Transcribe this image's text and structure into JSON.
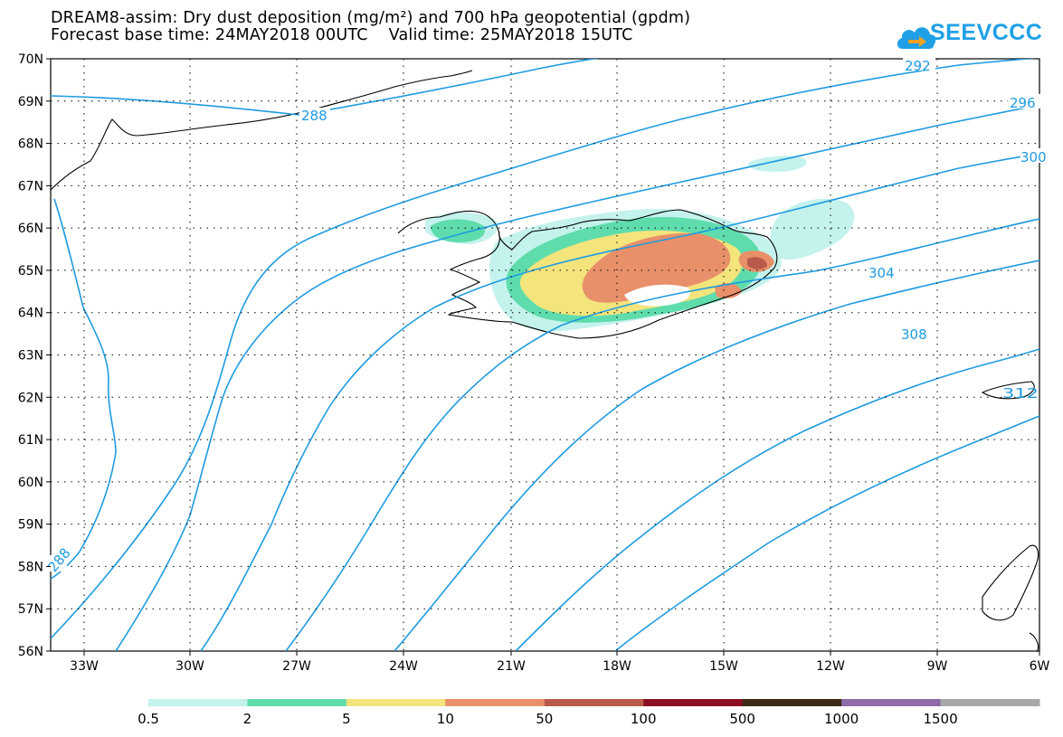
{
  "header": {
    "title_line1": "DREAM8-assim: Dry dust deposition (mg/m²) and 700 hPa geopotential (gpdm)",
    "title_line2": "Forecast base time: 24MAY2018 00UTC    Valid time: 25MAY2018 15UTC"
  },
  "logo": {
    "text": "SEEVCCC",
    "icon": "cloud-icon",
    "color": "#1fa0e6"
  },
  "map": {
    "lat_labels": [
      "70N",
      "69N",
      "68N",
      "67N",
      "66N",
      "65N",
      "64N",
      "63N",
      "62N",
      "61N",
      "60N",
      "59N",
      "58N",
      "57N",
      "56N"
    ],
    "lon_labels": [
      "33W",
      "30W",
      "27W",
      "24W",
      "21W",
      "18W",
      "15W",
      "12W",
      "9W",
      "6W"
    ],
    "contour_color": "#1e9be0",
    "contour_labels": [
      "288",
      "292",
      "296",
      "300",
      "304",
      "308",
      "312",
      "288"
    ],
    "grid": true
  },
  "legend": {
    "colors": [
      "#c4f2ec",
      "#5fdcac",
      "#f4e47c",
      "#e8906a",
      "#b85a4c",
      "#8a0f24",
      "#3a2a18",
      "#8e6aa8",
      "#a8a8a8"
    ],
    "values": [
      "0.5",
      "2",
      "5",
      "10",
      "50",
      "100",
      "500",
      "1000",
      "1500"
    ]
  }
}
